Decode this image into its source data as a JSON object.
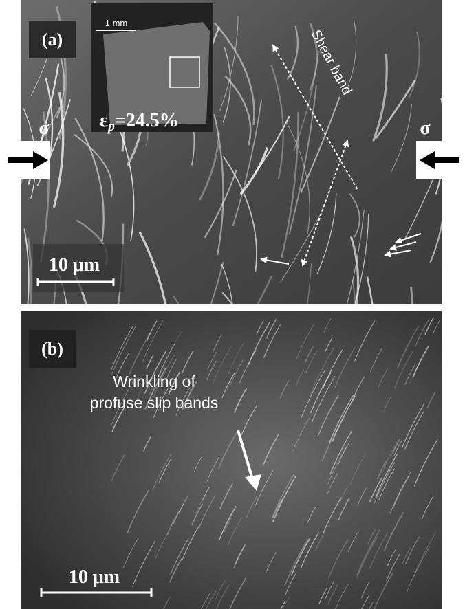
{
  "panel_a": {
    "label": "(a)",
    "inset_scale": "1 mm",
    "strain_label": {
      "symbol": "ε",
      "subscript": "p",
      "value": "=24.5%"
    },
    "shear_band": "Shear band",
    "stress_left": "σ",
    "stress_right": "σ",
    "scale_bar": "10 μm"
  },
  "panel_b": {
    "label": "(b)",
    "annotation_lines": [
      "Wrinkling of",
      "profuse slip bands"
    ],
    "scale_bar": "10 μm"
  }
}
